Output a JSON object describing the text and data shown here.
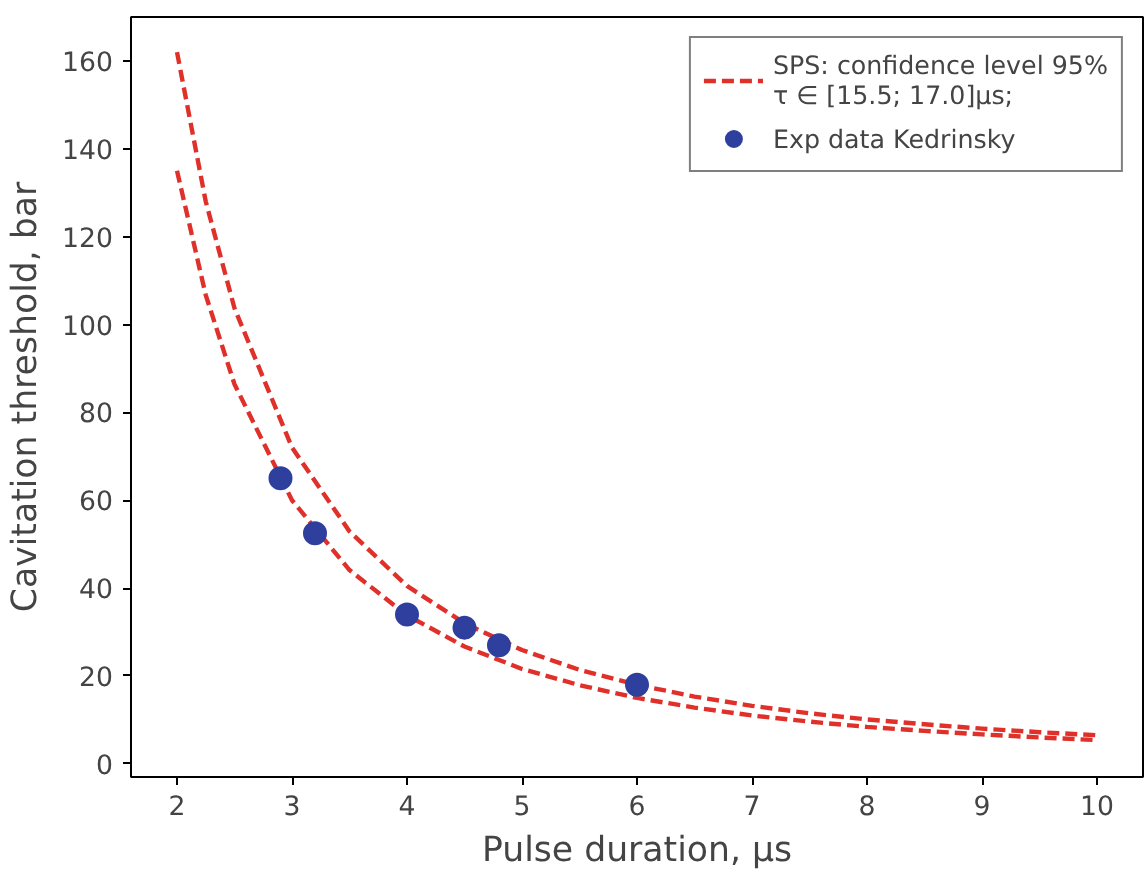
{
  "chart_data": {
    "type": "line",
    "xlabel": "Pulse duration, μs",
    "ylabel": "Cavitation threshold, bar",
    "xlim": [
      1.6,
      10.4
    ],
    "ylim": [
      -3,
      170
    ],
    "xticks": [
      2,
      3,
      4,
      5,
      6,
      7,
      8,
      9,
      10
    ],
    "yticks": [
      0,
      20,
      40,
      60,
      80,
      100,
      120,
      140,
      160
    ],
    "grid": false,
    "legend": "top right",
    "line_style": "dashed",
    "series": [
      {
        "name": "SPS: confidence level 95%\nτ ∈ [15.5; 17.0]μs;",
        "color": "#e0302a",
        "x": [
          2,
          2.25,
          2.5,
          3,
          3.5,
          4,
          4.5,
          5,
          5.5,
          6,
          6.5,
          7,
          7.5,
          8,
          8.5,
          9,
          9.5,
          10
        ],
        "values": [
          162,
          128,
          103.7,
          72,
          52.9,
          40.5,
          32,
          25.9,
          21.4,
          18,
          15.3,
          13.2,
          11.5,
          10.1,
          9.0,
          8.0,
          7.2,
          6.5
        ]
      },
      {
        "color": "#e0302a",
        "x": [
          2,
          2.25,
          2.5,
          3,
          3.5,
          4,
          4.5,
          5,
          5.5,
          6,
          6.5,
          7,
          7.5,
          8,
          8.5,
          9,
          9.5,
          10
        ],
        "values": [
          135,
          106.7,
          86.4,
          60,
          44.1,
          33.8,
          26.7,
          21.6,
          17.9,
          15,
          12.8,
          11.0,
          9.6,
          8.4,
          7.5,
          6.7,
          6.0,
          5.4
        ]
      },
      {
        "type": "scatter",
        "name": "Exp data Kedrinsky",
        "color": "#2e3f9e",
        "marker": "circle",
        "x": [
          2.9,
          3.2,
          4.0,
          4.5,
          4.8,
          6.0
        ],
        "values": [
          65,
          52.5,
          34,
          31,
          27,
          18
        ]
      }
    ]
  }
}
